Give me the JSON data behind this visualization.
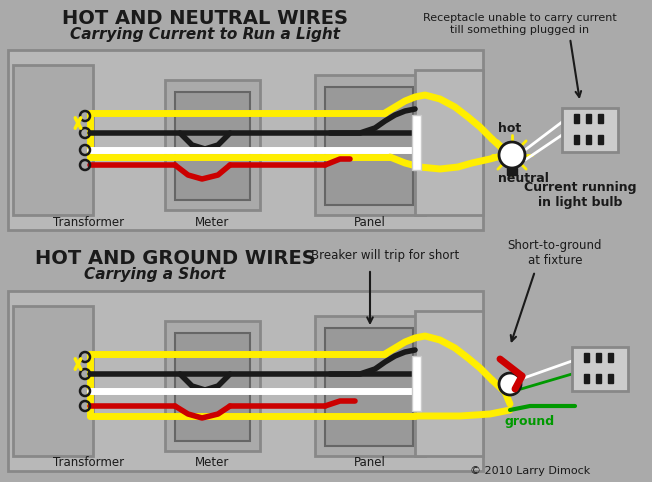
{
  "bg_color": "#aaaaaa",
  "title1_line1": "HOT AND NEUTRAL WIRES",
  "title1_line2": "Carrying Current to Run a Light",
  "title2_line1": "HOT AND GROUND WIRES",
  "title2_line2": "Carrying a Short",
  "annotation1": "Receptacle unable to carry current\ntill something plugged in",
  "annotation2": "Breaker will trip for short",
  "annotation3": "Short-to-ground\nat fixture",
  "label_transformer": "Transformer",
  "label_meter": "Meter",
  "label_panel": "Panel",
  "label_hot1": "hot",
  "label_neutral": "neutral",
  "label_current": "Current running\nin light bulb",
  "label_ground": "ground",
  "copyright": "© 2010 Larry Dimock",
  "yellow": "#ffee00",
  "black": "#1a1a1a",
  "white": "#ffffff",
  "red": "#cc0000",
  "green": "#009900",
  "gray_box": "#999999",
  "bg_color2": "#aaaaaa"
}
